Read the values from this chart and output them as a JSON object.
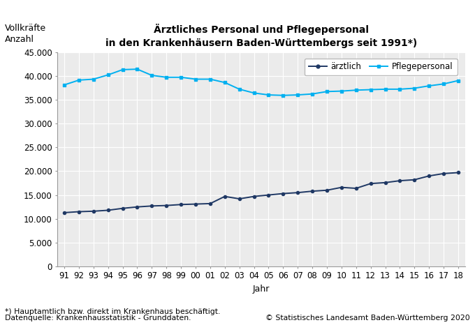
{
  "title_line1": "Ärztliches Personal und Pflegepersonal",
  "title_line2": "in den Krankenhäusern Baden-Württembergs seit 1991*)",
  "ylabel_line1": "Vollkräfte",
  "ylabel_line2": "Anzahl",
  "xlabel": "Jahr",
  "years": [
    1991,
    1992,
    1993,
    1994,
    1995,
    1996,
    1997,
    1998,
    1999,
    2000,
    2001,
    2002,
    2003,
    2004,
    2005,
    2006,
    2007,
    2008,
    2009,
    2010,
    2011,
    2012,
    2013,
    2014,
    2015,
    2016,
    2017,
    2018
  ],
  "year_labels": [
    "91",
    "92",
    "93",
    "94",
    "95",
    "96",
    "97",
    "98",
    "99",
    "00",
    "01",
    "02",
    "03",
    "04",
    "05",
    "06",
    "07",
    "08",
    "09",
    "10",
    "11",
    "12",
    "13",
    "14",
    "15",
    "16",
    "17",
    "18"
  ],
  "aerztlich": [
    11300,
    11500,
    11600,
    11800,
    12200,
    12500,
    12700,
    12800,
    13000,
    13100,
    13200,
    14700,
    14200,
    14700,
    15000,
    15300,
    15500,
    15800,
    16000,
    16600,
    16400,
    17400,
    17600,
    18000,
    18200,
    19000,
    19500,
    19700
  ],
  "pflege": [
    38100,
    39100,
    39300,
    40200,
    41300,
    41400,
    40100,
    39700,
    39700,
    39300,
    39300,
    38600,
    37200,
    36400,
    36000,
    35900,
    36000,
    36200,
    36700,
    36800,
    37000,
    37100,
    37200,
    37200,
    37400,
    37900,
    38300,
    39000
  ],
  "aerztlich_color": "#1f3864",
  "pflege_color": "#00b0f0",
  "background_color": "#ffffff",
  "plot_bg_color": "#ebebeb",
  "grid_color": "#ffffff",
  "ylim": [
    0,
    45000
  ],
  "yticks": [
    0,
    5000,
    10000,
    15000,
    20000,
    25000,
    30000,
    35000,
    40000,
    45000
  ],
  "footnote1": "*) Hauptamtlich bzw. direkt im Krankenhaus beschäftigt.",
  "footnote2": "Datenquelle: Krankenhausstatistik - Grunddaten.",
  "copyright": "© Statistisches Landesamt Baden-Württemberg 2020",
  "legend_aerztlich": "ärztlich",
  "legend_pflege": "Pflegepersonal"
}
